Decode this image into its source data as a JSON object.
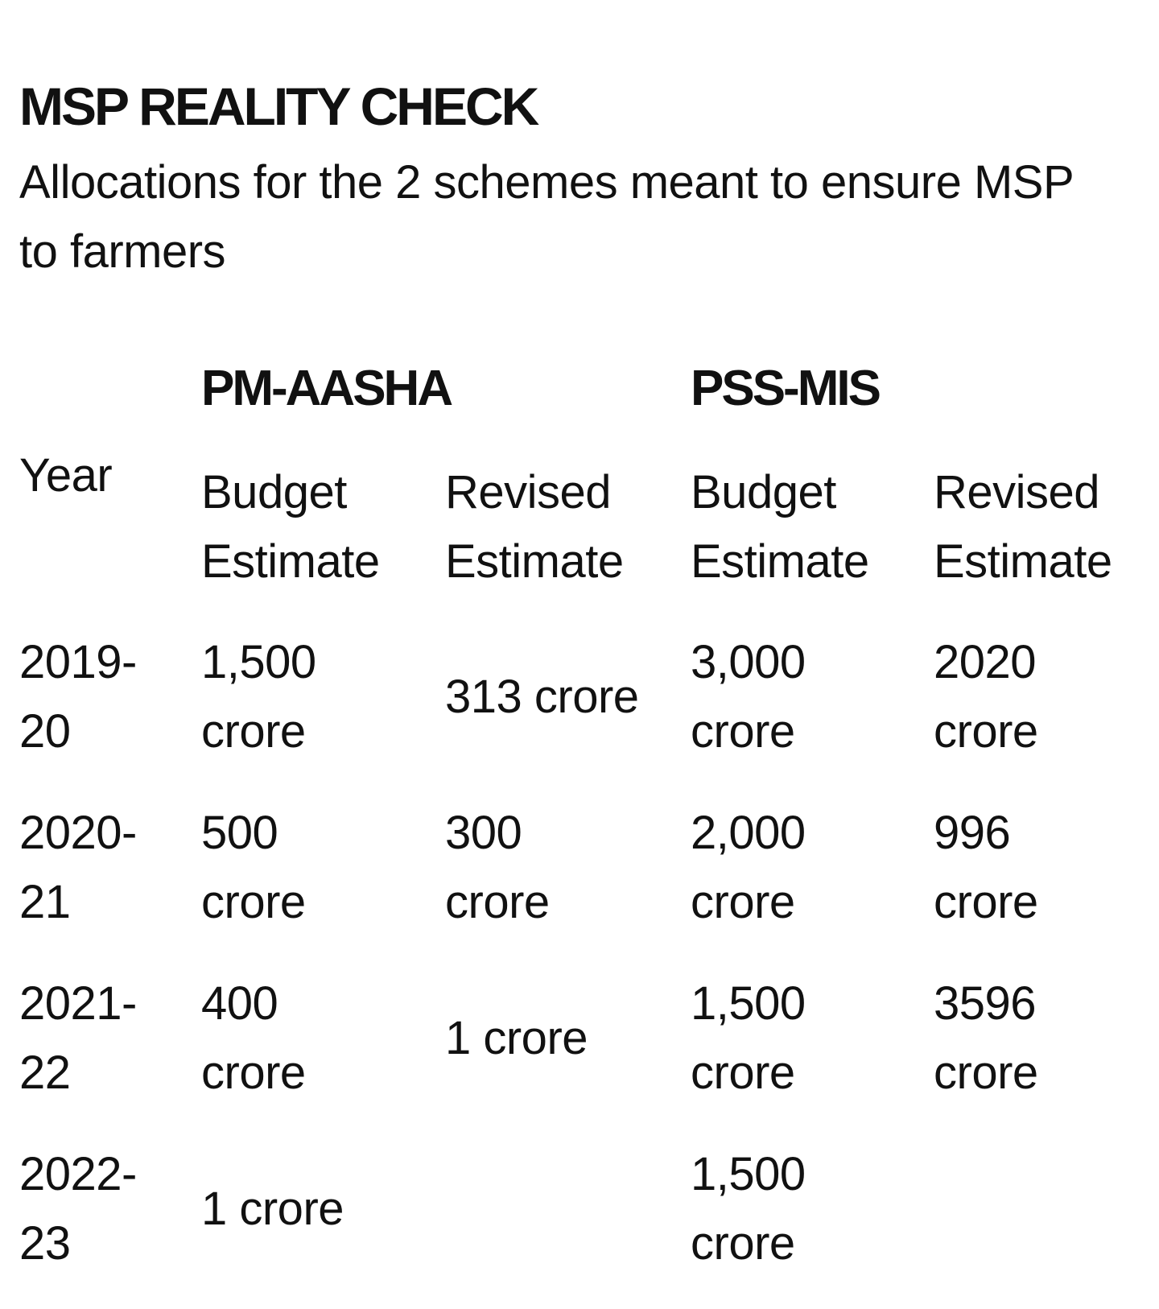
{
  "title": "MSP REALITY CHECK",
  "subtitle": "Allocations for the 2 schemes meant to ensure MSP to farmers",
  "schemes": [
    "PM-AASHA",
    "PSS-MIS"
  ],
  "columns": {
    "year": "Year",
    "pm_budget": [
      "Budget",
      "Estimate"
    ],
    "pm_revised": [
      "Revised",
      "Estimate"
    ],
    "pss_budget": [
      "Budget",
      "Estimate"
    ],
    "pss_revised": [
      "Revised",
      "Estimate"
    ]
  },
  "rows": [
    {
      "year": [
        "2019-",
        "20"
      ],
      "pm_budget": [
        "1,500",
        "crore"
      ],
      "pm_revised": "313 crore",
      "pss_budget": [
        "3,000",
        "crore"
      ],
      "pss_revised": [
        "2020",
        "crore"
      ]
    },
    {
      "year": [
        "2020-",
        "21"
      ],
      "pm_budget": [
        "500",
        "crore"
      ],
      "pm_revised": [
        "300",
        "crore"
      ],
      "pss_budget": [
        "2,000",
        "crore"
      ],
      "pss_revised": [
        "996",
        "crore"
      ]
    },
    {
      "year": [
        "2021-",
        "22"
      ],
      "pm_budget": [
        "400",
        "crore"
      ],
      "pm_revised": "1 crore",
      "pss_budget": [
        "1,500",
        "crore"
      ],
      "pss_revised": [
        "3596",
        "crore"
      ]
    },
    {
      "year": [
        "2022-",
        "23"
      ],
      "pm_budget": "1 crore",
      "pss_budget": [
        "1,500",
        "crore"
      ]
    }
  ]
}
